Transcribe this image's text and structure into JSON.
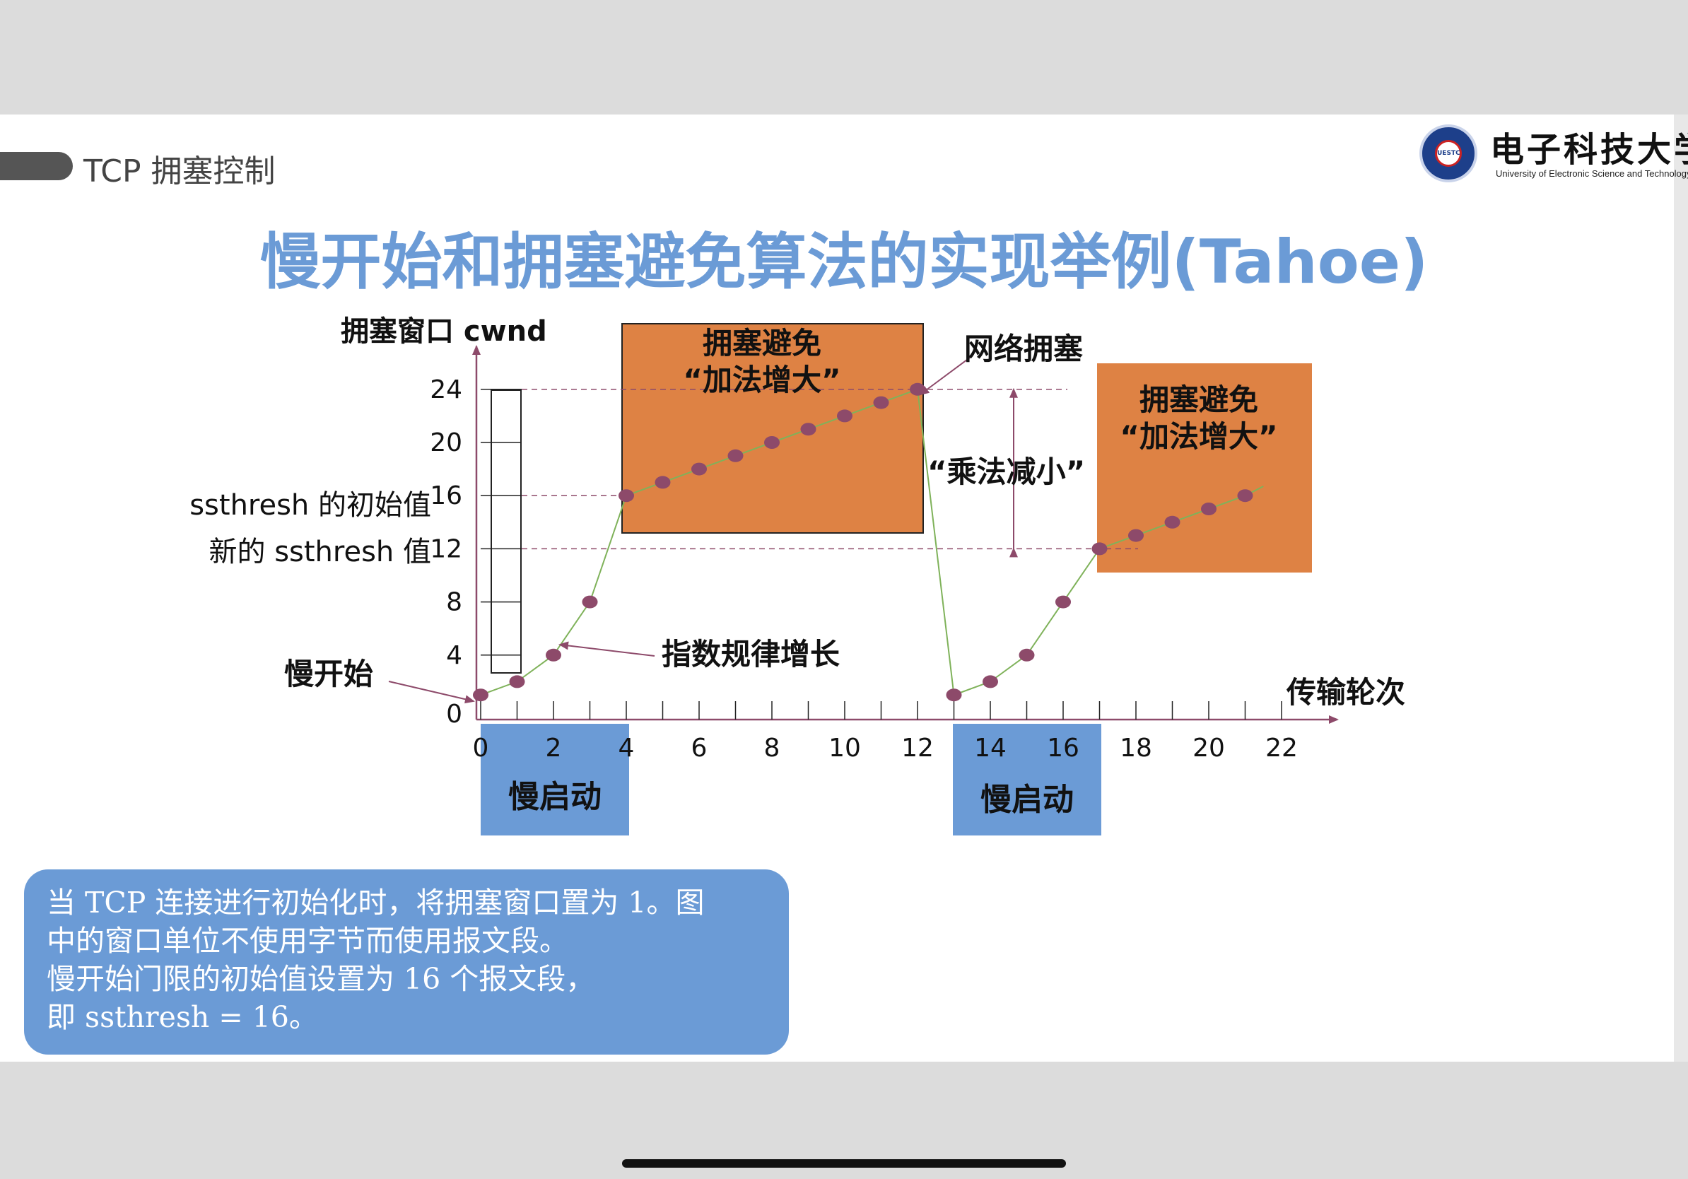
{
  "header": {
    "section_title": "TCP 拥塞控制",
    "logo_cn": "电子科技大学",
    "logo_en": "University of Electronic Science and Technology of China",
    "logo_seal": "UESTC"
  },
  "title": "慢开始和拥塞避免算法的实现举例(Tahoe)",
  "chart_data": {
    "type": "line",
    "ylabel": "拥塞窗口 cwnd",
    "xlabel": "传输轮次",
    "x_ticks": [
      "0",
      "2",
      "4",
      "6",
      "8",
      "10",
      "12",
      "14",
      "16",
      "18",
      "20",
      "22"
    ],
    "y_ticks": [
      "0",
      "4",
      "8",
      "12",
      "16",
      "20",
      "24"
    ],
    "xlim": [
      0,
      23
    ],
    "ylim": [
      0,
      26
    ],
    "x": [
      0,
      1,
      2,
      3,
      4,
      5,
      6,
      7,
      8,
      9,
      10,
      11,
      12,
      13,
      14,
      15,
      16,
      17,
      18,
      19,
      20,
      21
    ],
    "values": [
      1,
      2,
      4,
      8,
      16,
      17,
      18,
      19,
      20,
      21,
      22,
      23,
      24,
      1,
      2,
      4,
      8,
      12,
      13,
      14,
      15,
      16
    ],
    "line_tail": [
      21.5,
      16.7
    ],
    "ssthresh_initial": 16,
    "ssthresh_new": 12,
    "peak": 24,
    "annotations": {
      "slow_start_label": "慢开始",
      "exponential": "指数规律增长",
      "ssthresh_initial_label": "ssthresh 的初始值",
      "ssthresh_new_label": "新的 ssthresh 值",
      "congestion": "网络拥塞",
      "multiplicative_decrease": "“乘法减小”",
      "ca_box1_line1": "拥塞避免",
      "ca_box1_line2": "“加法增大”",
      "ca_box2_line1": "拥塞避免",
      "ca_box2_line2": "“加法增大”",
      "ss_box1": "慢启动",
      "ss_box2": "慢启动"
    },
    "colors": {
      "point": "#8d4a6a",
      "line": "#7fb25a",
      "axis": "#8d4a6a",
      "dashed": "#8d4a6a",
      "orange": "#de8244",
      "blue": "#6b9bd6"
    }
  },
  "note": {
    "line1": "当 TCP 连接进行初始化时，将拥塞窗口置为 1。图",
    "line2": "中的窗口单位不使用字节而使用报文段。",
    "line3": "慢开始门限的初始值设置为 16 个报文段，",
    "line4": "即 ssthresh = 16。"
  }
}
